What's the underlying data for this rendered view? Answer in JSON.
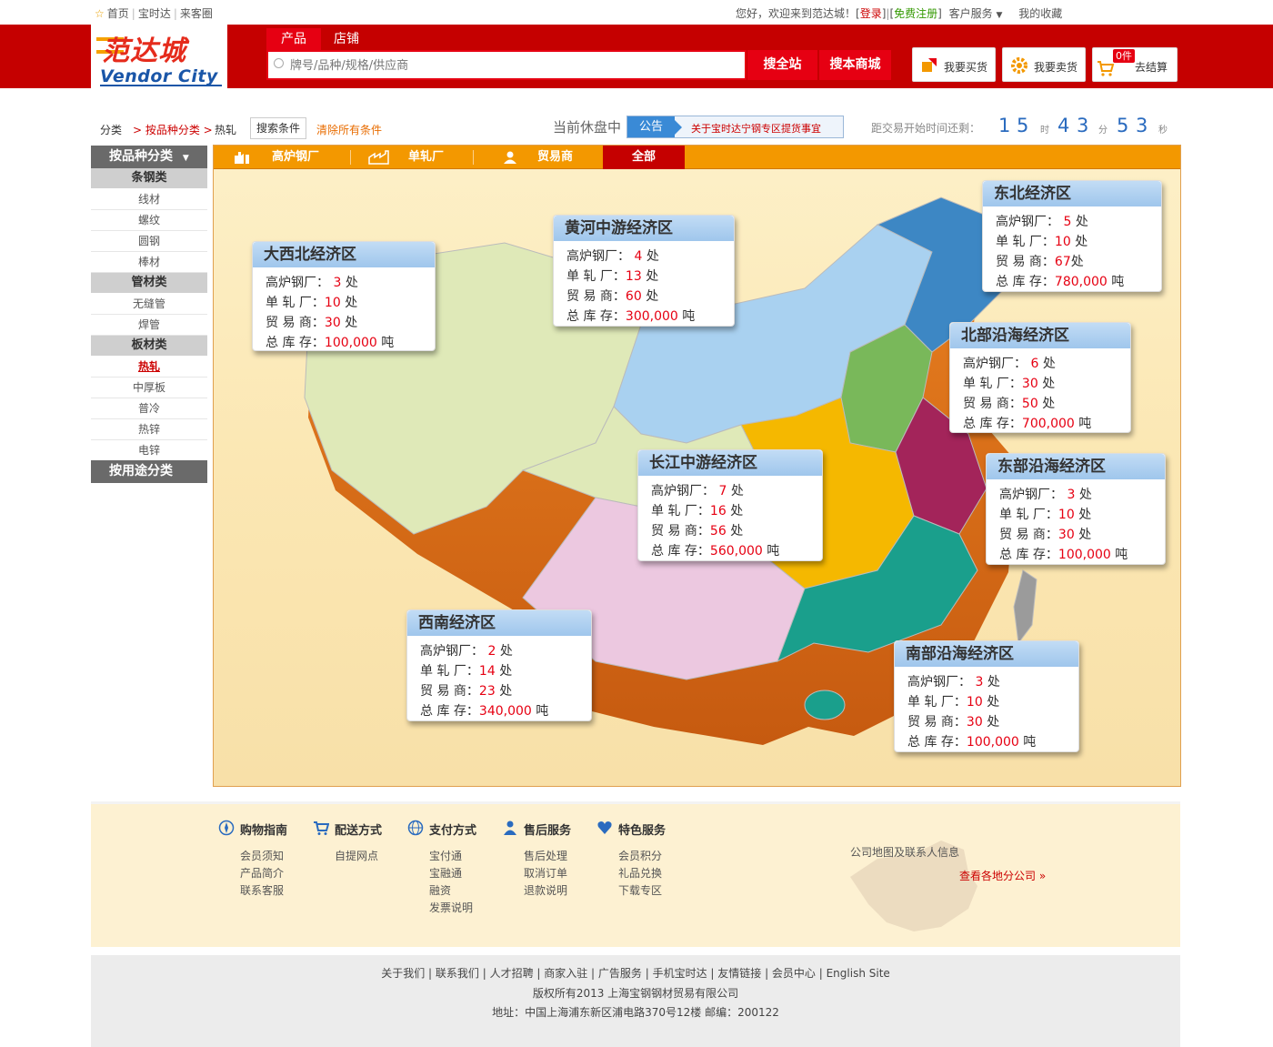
{
  "topbar": {
    "links": [
      "首页",
      "宝时达",
      "来客圈"
    ],
    "welcome": "您好，欢迎来到范达城！",
    "login": "登录",
    "register": "免费注册",
    "service": "客户服务",
    "favorites": "我的收藏"
  },
  "header": {
    "logo_cn": "范达城",
    "logo_en": "Vendor City",
    "tabs": [
      "产品",
      "店铺"
    ],
    "search_placeholder": "牌号/品种/规格/供应商",
    "search_all": "搜全站",
    "search_mall": "搜本商城",
    "buy": "我要买货",
    "sell": "我要卖货",
    "cart_count": "0件",
    "checkout": "去结算"
  },
  "crumb": {
    "root": "分类",
    "level1": "> 按品种分类 >",
    "level2": "热轧",
    "filter_btn": "搜索条件",
    "clear": "清除所有条件"
  },
  "market": {
    "status": "当前休盘中",
    "notice_tag": "公告",
    "notice_text": "关于宝时达宁钢专区提货事宜",
    "countdown_label": "距交易开始时间还剩：",
    "hours": [
      "1",
      "5"
    ],
    "hour_unit": "时",
    "minutes": [
      "4",
      "3"
    ],
    "minute_unit": "分",
    "seconds": [
      "5",
      "3"
    ],
    "second_unit": "秒"
  },
  "sidebar": {
    "head": "按品种分类",
    "groups": [
      {
        "name": "条钢类",
        "items": [
          "线材",
          "螺纹",
          "圆钢",
          "棒材"
        ]
      },
      {
        "name": "管材类",
        "items": [
          "无缝管",
          "焊管"
        ]
      },
      {
        "name": "板材类",
        "items": [
          "热轧",
          "中厚板",
          "普冷",
          "热锌",
          "电锌"
        ]
      }
    ],
    "active_item": "热轧",
    "usage_head": "按用途分类"
  },
  "map_tabs": [
    "高炉钢厂",
    "单轧厂",
    "贸易商",
    "全部"
  ],
  "labels": {
    "blast": "高炉钢厂：",
    "rolling": "单 轧 厂：",
    "trader": "贸 易 商：",
    "stock": "总 库 存：",
    "unit_place": "处",
    "unit_ton": "吨"
  },
  "regions": [
    {
      "name": "大西北经济区",
      "blast": "3",
      "rolling": "10",
      "trader": "30",
      "stock": "100,000"
    },
    {
      "name": "黄河中游经济区",
      "blast": "4",
      "rolling": "13",
      "trader": "60",
      "stock": "300,000"
    },
    {
      "name": "东北经济区",
      "blast": "5",
      "rolling": "10",
      "trader": "67",
      "stock": "780,000"
    },
    {
      "name": "北部沿海经济区",
      "blast": "6",
      "rolling": "30",
      "trader": "50",
      "stock": "700,000"
    },
    {
      "name": "长江中游经济区",
      "blast": "7",
      "rolling": "16",
      "trader": "56",
      "stock": "560,000"
    },
    {
      "name": "东部沿海经济区",
      "blast": "3",
      "rolling": "10",
      "trader": "30",
      "stock": "100,000"
    },
    {
      "name": "西南经济区",
      "blast": "2",
      "rolling": "14",
      "trader": "23",
      "stock": "340,000"
    },
    {
      "name": "南部沿海经济区",
      "blast": "3",
      "rolling": "10",
      "trader": "30",
      "stock": "100,000"
    }
  ],
  "footer": {
    "columns": [
      {
        "title": "购物指南",
        "items": [
          "会员须知",
          "产品简介",
          "联系客服"
        ],
        "icon": "compass-icon"
      },
      {
        "title": "配送方式",
        "items": [
          "自提网点"
        ],
        "icon": "cart-icon"
      },
      {
        "title": "支付方式",
        "items": [
          "宝付通",
          "宝融通",
          "融资",
          "发票说明"
        ],
        "icon": "globe-icon"
      },
      {
        "title": "售后服务",
        "items": [
          "售后处理",
          "取消订单",
          "退款说明"
        ],
        "icon": "person-icon"
      },
      {
        "title": "特色服务",
        "items": [
          "会员积分",
          "礼品兑换",
          "下载专区"
        ],
        "icon": "heart-icon"
      }
    ],
    "map_label": "公司地图及联系人信息",
    "map_link": "查看各地分公司 »",
    "links_line": "关于我们 | 联系我们 | 人才招聘 | 商家入驻 | 广告服务 | 手机宝时达 | 友情链接 | 会员中心 | English Site",
    "copyright": "版权所有2013 上海宝钢钢材贸易有限公司",
    "address": "地址：中国上海浦东新区浦电路370号12楼 邮编：200122"
  },
  "colors": {
    "brand_red": "#c50000",
    "tab_orange": "#f39800",
    "value_red": "#e60012",
    "link_blue": "#2a6bbf"
  }
}
